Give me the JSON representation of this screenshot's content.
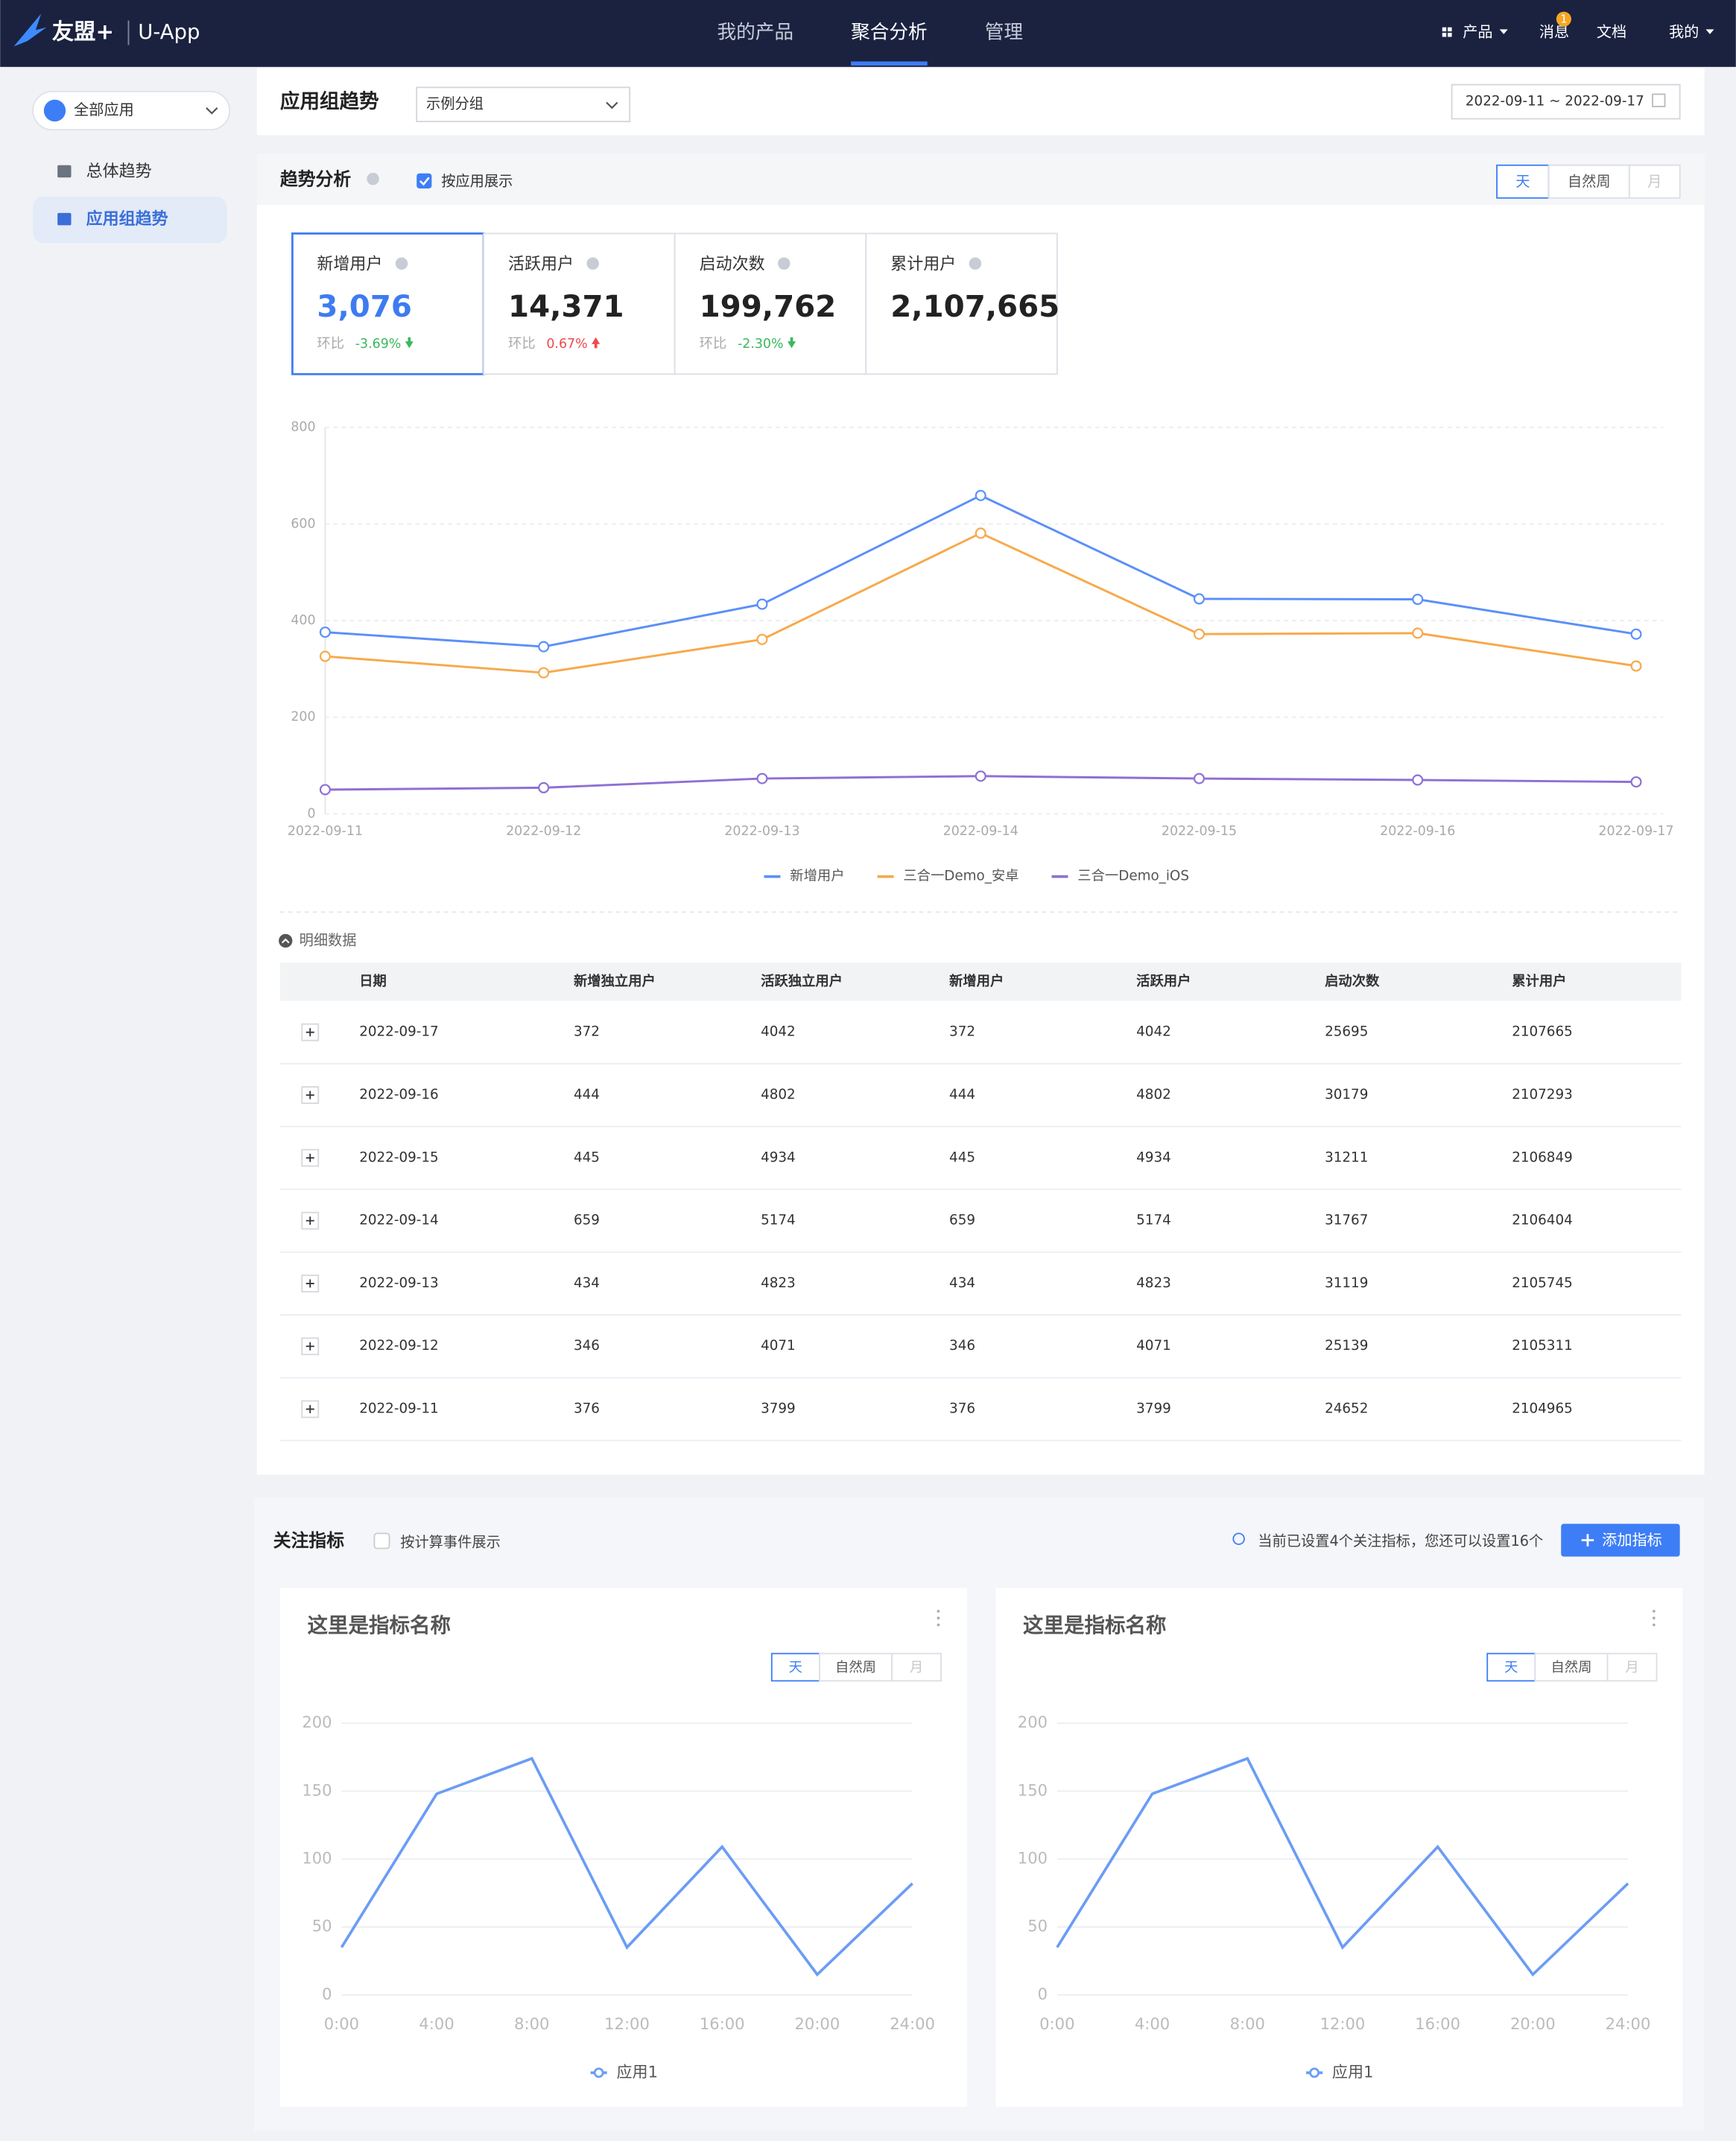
{
  "nav": {
    "brand": "友盟+",
    "app": "U-App",
    "tabs": [
      "我的产品",
      "聚合分析",
      "管理"
    ],
    "active_tab": 1,
    "right": [
      "产品",
      "消息",
      "文档",
      "我的"
    ],
    "badge": "1"
  },
  "sidebar": {
    "app_select": "全部应用",
    "items": [
      "总体趋势",
      "应用组趋势"
    ],
    "active_item": 1
  },
  "header": {
    "title": "应用组趋势",
    "group_select": "示例分组",
    "date_range": "2022-09-11 ~ 2022-09-17"
  },
  "trend": {
    "title": "趋势分析",
    "checkbox_label": "按应用展示",
    "granularity": [
      "天",
      "自然周",
      "月"
    ],
    "kpis": [
      {
        "label": "新增用户",
        "value": "3,076",
        "change_label": "环比",
        "change": "-3.69%"
      },
      {
        "label": "活跃用户",
        "value": "14,371",
        "change_label": "环比",
        "change": "0.67%"
      },
      {
        "label": "启动次数",
        "value": "199,762",
        "change_label": "环比",
        "change": "-2.30%"
      },
      {
        "label": "累计用户",
        "value": "2,107,665"
      }
    ],
    "chart": {
      "type": "line",
      "categories": [
        "2022-09-11",
        "2022-09-12",
        "2022-09-13",
        "2022-09-14",
        "2022-09-15",
        "2022-09-16",
        "2022-09-17"
      ],
      "series": [
        {
          "name": "新增用户",
          "color": "#5b8ff9",
          "values": [
            376,
            346,
            434,
            659,
            445,
            444,
            372
          ]
        },
        {
          "name": "三合一Demo_安卓",
          "color": "#f7a94b",
          "values": [
            326,
            292,
            361,
            581,
            372,
            374,
            306
          ]
        },
        {
          "name": "三合一Demo_iOS",
          "color": "#8f6fd4",
          "values": [
            50,
            54,
            73,
            78,
            73,
            70,
            66
          ]
        }
      ],
      "ylim": [
        0,
        800
      ],
      "yticks": [
        0,
        200,
        400,
        600,
        800
      ],
      "grid": true
    }
  },
  "detail": {
    "title": "明细数据",
    "table": {
      "columns": [
        "日期",
        "新增独立用户",
        "活跃独立用户",
        "新增用户",
        "活跃用户",
        "启动次数",
        "累计用户"
      ],
      "rows": [
        [
          "2022-09-17",
          372,
          4042,
          372,
          4042,
          25695,
          2107665
        ],
        [
          "2022-09-16",
          444,
          4802,
          444,
          4802,
          30179,
          2107293
        ],
        [
          "2022-09-15",
          445,
          4934,
          445,
          4934,
          31211,
          2106849
        ],
        [
          "2022-09-14",
          659,
          5174,
          659,
          5174,
          31767,
          2106404
        ],
        [
          "2022-09-13",
          434,
          4823,
          434,
          4823,
          31119,
          2105745
        ],
        [
          "2022-09-12",
          346,
          4071,
          346,
          4071,
          25139,
          2105311
        ],
        [
          "2022-09-11",
          376,
          3799,
          376,
          3799,
          24652,
          2104965
        ]
      ]
    }
  },
  "focus": {
    "title": "关注指标",
    "checkbox_label": "按计算事件展示",
    "tip": "当前已设置4个关注指标，您还可以设置16个",
    "button": "添加指标",
    "cards": [
      {
        "title": "这里是指标名称",
        "granularity": [
          "天",
          "自然周",
          "月"
        ],
        "chart": {
          "type": "line",
          "categories": [
            "0:00",
            "4:00",
            "8:00",
            "12:00",
            "16:00",
            "20:00",
            "24:00"
          ],
          "series": [
            {
              "name": "应用1",
              "color": "#6b9cf5",
              "values": [
                35,
                148,
                174,
                35,
                109,
                15,
                82
              ]
            }
          ],
          "ylim": [
            0,
            200
          ],
          "yticks": [
            0,
            50,
            100,
            150,
            200
          ],
          "grid": true
        }
      },
      {
        "title": "这里是指标名称",
        "granularity": [
          "天",
          "自然周",
          "月"
        ],
        "chart": {
          "type": "line",
          "categories": [
            "0:00",
            "4:00",
            "8:00",
            "12:00",
            "16:00",
            "20:00",
            "24:00"
          ],
          "series": [
            {
              "name": "应用1",
              "color": "#6b9cf5",
              "values": [
                35,
                148,
                174,
                35,
                109,
                15,
                82
              ]
            }
          ],
          "ylim": [
            0,
            200
          ],
          "yticks": [
            0,
            50,
            100,
            150,
            200
          ],
          "grid": true
        }
      }
    ]
  }
}
